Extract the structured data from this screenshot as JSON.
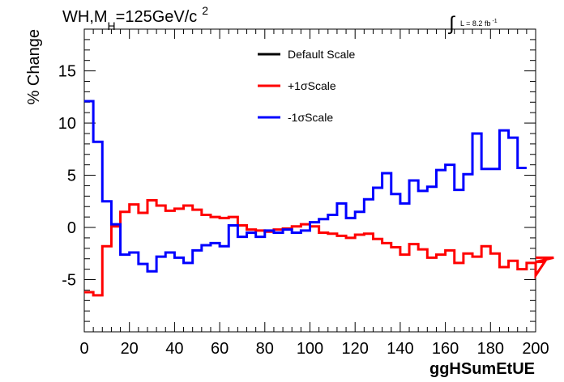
{
  "chart_data": {
    "type": "line",
    "title": {
      "prefix": "WH,M",
      "sub": "H",
      "main": "=125GeV/c",
      "sup": "2"
    },
    "lumi": {
      "symbol": "∫",
      "text": "L = 8.2 fb",
      "sup": "-1"
    },
    "xlabel": "ggHSumEtUE",
    "ylabel": "% Change",
    "xlim": [
      0,
      200
    ],
    "ylim": [
      -10,
      19
    ],
    "xticks": [
      0,
      20,
      40,
      60,
      80,
      100,
      120,
      140,
      160,
      180,
      200
    ],
    "yticks": [
      -5,
      0,
      5,
      10,
      15
    ],
    "grid": false,
    "legend_position": "top-center",
    "bin_width": 4,
    "series": [
      {
        "name": "Default Scale",
        "color": "#000000",
        "values": []
      },
      {
        "name": "+1σScale",
        "color": "#ff0000",
        "values": [
          -6.2,
          -6.5,
          -1.8,
          0.1,
          1.5,
          2.2,
          1.4,
          2.6,
          2.1,
          1.6,
          1.8,
          2.1,
          1.7,
          1.2,
          1.0,
          0.9,
          1.0,
          0.2,
          -0.2,
          -0.3,
          -0.4,
          -0.2,
          -0.1,
          0.1,
          0.3,
          0.1,
          -0.5,
          -0.6,
          -0.8,
          -1.0,
          -0.7,
          -0.6,
          -1.1,
          -1.5,
          -1.9,
          -2.6,
          -1.6,
          -2.1,
          -2.9,
          -2.6,
          -2.2,
          -3.4,
          -2.5,
          -2.8,
          -1.8,
          -2.5,
          -3.8,
          -3.2,
          -4.0,
          -3.4,
          -4.6,
          -3.3,
          -2.9
        ]
      },
      {
        "name": "-1σScale",
        "color": "#0000ff",
        "values": [
          12.1,
          8.2,
          2.5,
          0.3,
          -2.6,
          -2.4,
          -3.5,
          -4.2,
          -2.8,
          -2.4,
          -2.9,
          -3.4,
          -2.2,
          -1.7,
          -1.5,
          -1.8,
          0.2,
          -0.9,
          -0.5,
          -0.9,
          -0.3,
          -0.5,
          -0.2,
          -0.5,
          -0.3,
          0.5,
          0.8,
          1.2,
          2.3,
          0.9,
          1.5,
          2.7,
          3.8,
          5.2,
          3.2,
          2.3,
          4.5,
          3.5,
          3.9,
          5.5,
          6.0,
          3.6,
          5.1,
          9.0,
          5.6,
          5.6,
          9.3,
          8.6,
          5.7
        ]
      }
    ]
  }
}
